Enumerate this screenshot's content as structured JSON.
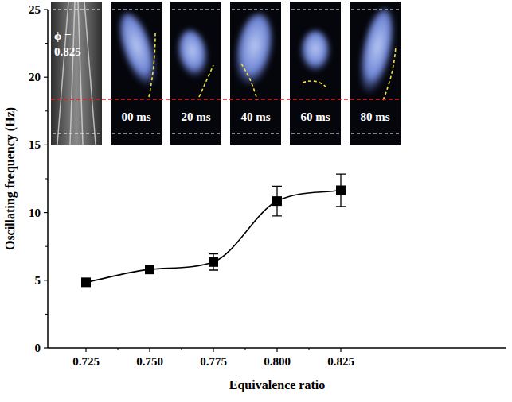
{
  "chart_data": {
    "type": "line",
    "x_label": "Equivalence ratio",
    "y_label": "Oscillating frequency (Hz)",
    "x": [
      0.725,
      0.75,
      0.775,
      0.8,
      0.825
    ],
    "series": [
      {
        "values": [
          4.85,
          5.8,
          6.35,
          10.85,
          11.65
        ],
        "errors": [
          0.15,
          0.15,
          0.6,
          1.1,
          1.2
        ],
        "color": "#000000",
        "marker": "square",
        "line_style": "solid"
      }
    ],
    "xlim": [
      0.71,
      0.89
    ],
    "xticks": [
      0.725,
      {
        "value": 0.75,
        "label": "0.750"
      },
      0.775,
      {
        "value": 0.8,
        "label": "0.800"
      },
      0.825
    ],
    "ylim": [
      0,
      25
    ],
    "yticks": [
      0,
      5,
      10,
      15,
      20,
      25
    ],
    "annotations": [
      "ϕ = 0.825",
      "00 ms",
      "20 ms",
      "40 ms",
      "60 ms",
      "80 ms"
    ]
  }
}
